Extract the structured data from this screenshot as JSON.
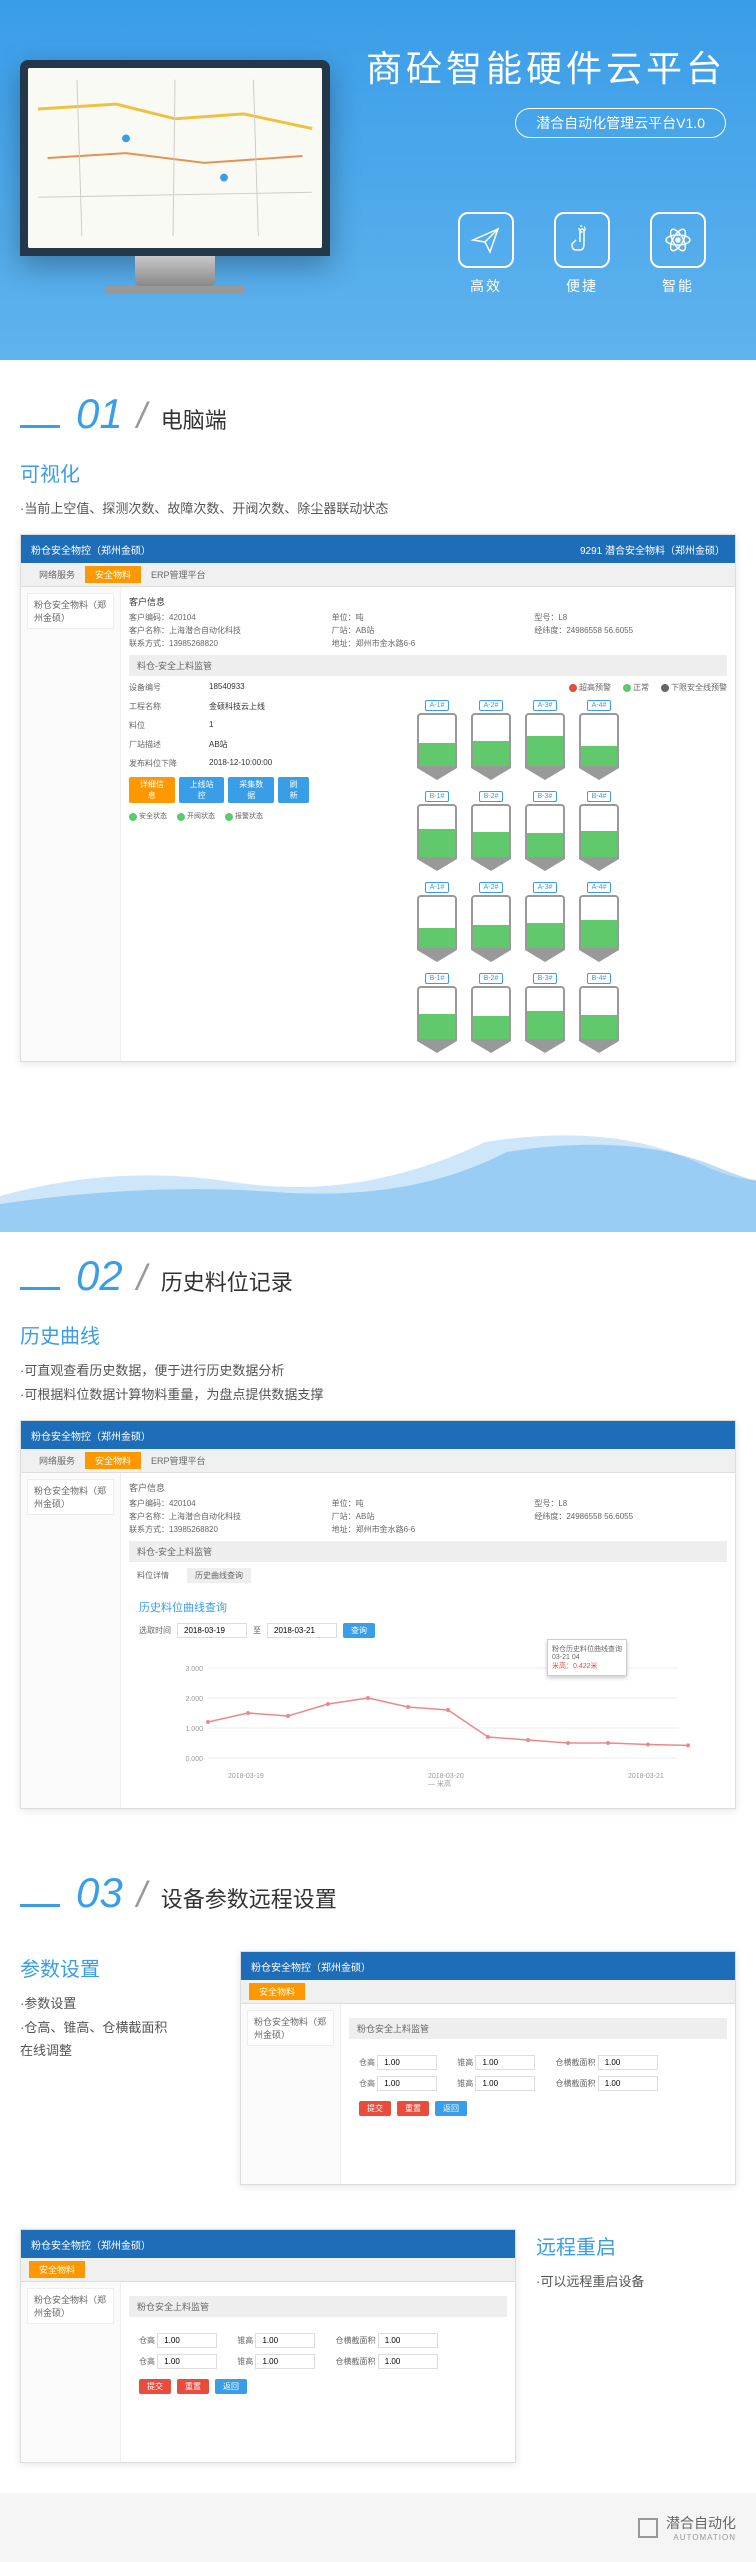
{
  "hero": {
    "title": "商砼智能硬件云平台",
    "subtitle": "潜合自动化管理云平台V1.0",
    "features": [
      {
        "label": "高效",
        "icon": "plane"
      },
      {
        "label": "便捷",
        "icon": "hand"
      },
      {
        "label": "智能",
        "icon": "atom"
      }
    ]
  },
  "sections": [
    {
      "num": "01",
      "title": "电脑端"
    },
    {
      "num": "02",
      "title": "历史料位记录"
    },
    {
      "num": "03",
      "title": "设备参数远程设置"
    }
  ],
  "s1": {
    "subtitle": "可视化",
    "desc": "·当前上空值、探测次数、故障次数、开阀次数、除尘器联动状态",
    "shot_header": "粉仓安全物控（郑州金硕）",
    "shot_right": "9291 潜合安全物料（郑州金硕）",
    "tabs": [
      "网络服务",
      "安全物料",
      "ERP管理平台"
    ],
    "side": [
      "粉仓安全物料（郑州金硕）"
    ],
    "section_label": "客户信息",
    "info": [
      {
        "k": "客户编码",
        "v": "420104"
      },
      {
        "k": "单位",
        "v": "吨"
      },
      {
        "k": "型号",
        "v": "L8"
      },
      {
        "k": "客户名称",
        "v": "上海潜合自动化科技"
      },
      {
        "k": "厂站",
        "v": "AB站"
      },
      {
        "k": "经纬度",
        "v": "24986558 56.6055"
      },
      {
        "k": "联系方式",
        "v": "13985268820"
      },
      {
        "k": "地址",
        "v": "郑州市金水路6-6"
      }
    ],
    "panel": "料仓-安全上料监管",
    "legend": [
      {
        "color": "#e74c3c",
        "label": "超高预警"
      },
      {
        "color": "#5fc96b",
        "label": "正常"
      },
      {
        "color": "#666",
        "label": "下限安全线预警"
      }
    ],
    "form": [
      {
        "k": "设备编号",
        "v": "18540933"
      },
      {
        "k": "工程名称",
        "v": "金硕科技云上线"
      },
      {
        "k": "料位",
        "v": "1"
      },
      {
        "k": "厂站描述",
        "v": "AB站"
      },
      {
        "k": "发布料位下降",
        "v": "2018-12-10:00:00"
      }
    ],
    "btns": [
      "详细信息",
      "上线站控",
      "采集数据",
      "刷新"
    ],
    "status_labels": [
      "安全状态",
      "开阀状态",
      "报警状态"
    ],
    "silo_labels_a": [
      "A-1#",
      "A-2#",
      "A-3#",
      "A-4#"
    ],
    "silo_labels_b": [
      "B-1#",
      "B-2#",
      "B-3#",
      "B-4#"
    ],
    "silo_levels_a": [
      45,
      50,
      60,
      40
    ],
    "silo_levels_b": [
      55,
      50,
      48,
      52
    ],
    "silo_levels_a2": [
      40,
      45,
      50,
      55
    ],
    "silo_levels_b2": [
      50,
      45,
      55,
      48
    ],
    "silo_color": "#5fc96b"
  },
  "s2": {
    "subtitle": "历史曲线",
    "desc1": "·可直观查看历史数据，便于进行历史数据分析",
    "desc2": "·可根据料位数据计算物料重量，为盘点提供数据支撑",
    "shot_header": "粉仓安全物控（郑州金硕）",
    "panel": "料仓-安全上料监管",
    "tab_labels": [
      "料位详情",
      "历史曲线查询"
    ],
    "chart_title": "历史料位曲线查询",
    "date_label": "选取时间",
    "dates": [
      "2018-03-19",
      "2018-03-21"
    ],
    "query_btn": "查询",
    "tooltip_title": "粉仓历史料位曲线查询",
    "tooltip_time": "03-21 04",
    "tooltip_val": "米高：0.422米",
    "y_ticks": [
      "3.000",
      "2.000",
      "1.000",
      "0.000"
    ],
    "x_labels": [
      "2018-03-19",
      "2018-03-20",
      "2018-03-21"
    ],
    "legend_label": "米高",
    "chart_data": {
      "color": "#ee8888",
      "points": [
        [
          0,
          1.2
        ],
        [
          40,
          1.5
        ],
        [
          80,
          1.4
        ],
        [
          120,
          1.8
        ],
        [
          160,
          2.0
        ],
        [
          200,
          1.7
        ],
        [
          240,
          1.6
        ],
        [
          280,
          0.7
        ],
        [
          320,
          0.6
        ],
        [
          360,
          0.5
        ],
        [
          400,
          0.5
        ],
        [
          440,
          0.45
        ],
        [
          480,
          0.42
        ]
      ]
    }
  },
  "s3": {
    "subtitle": "参数设置",
    "desc": [
      "·参数设置",
      "·仓高、锥高、仓横截面积",
      "在线调整"
    ],
    "panel": "粉仓安全上料监管",
    "param_groups": [
      [
        {
          "k": "仓高",
          "v": "1.00"
        },
        {
          "k": "锥高",
          "v": "1.00"
        },
        {
          "k": "仓横截面积",
          "v": "1.00"
        }
      ],
      [
        {
          "k": "仓高",
          "v": "1.00"
        },
        {
          "k": "锥高",
          "v": "1.00"
        },
        {
          "k": "仓横截面积",
          "v": "1.00"
        }
      ]
    ],
    "btns": [
      "提交",
      "重置",
      "返回"
    ],
    "s4_subtitle": "远程重启",
    "s4_desc": "·可以远程重启设备"
  },
  "footer": {
    "brand": "潜合自动化",
    "sub": "AUTOMATION"
  },
  "colors": {
    "primary": "#3a9de8",
    "accent": "#ff9800",
    "green": "#5fc96b",
    "red": "#e74c3c"
  }
}
